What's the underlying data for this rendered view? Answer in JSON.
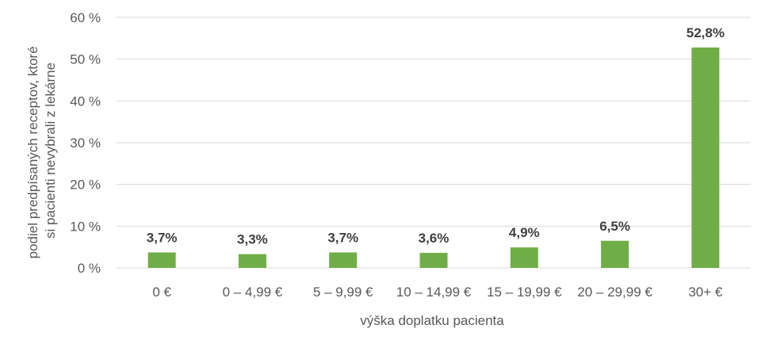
{
  "chart_data": {
    "type": "bar",
    "categories": [
      "0 €",
      "0 – 4,99 €",
      "5 – 9,99 €",
      "10 – 14,99 €",
      "15 – 19,99 €",
      "20 – 29,99 €",
      "30+ €"
    ],
    "values": [
      3.7,
      3.3,
      3.7,
      3.6,
      4.9,
      6.5,
      52.8
    ],
    "data_labels": [
      "3,7%",
      "3,3%",
      "3,7%",
      "3,6%",
      "4,9%",
      "6,5%",
      "52,8%"
    ],
    "ytick_labels": [
      "0 %",
      "10 %",
      "20 %",
      "30 %",
      "40 %",
      "50 %",
      "60 %"
    ],
    "ylim": [
      0,
      60
    ],
    "xlabel": "výška doplatku pacienta",
    "ylabel_lines": [
      "podiel predpísaných receptov, ktoré",
      "si pacienti nevybrali z lekárne"
    ],
    "grid": true,
    "legend": "none",
    "bar_color": "#70ad47",
    "grid_color": "#d9d9d9"
  }
}
